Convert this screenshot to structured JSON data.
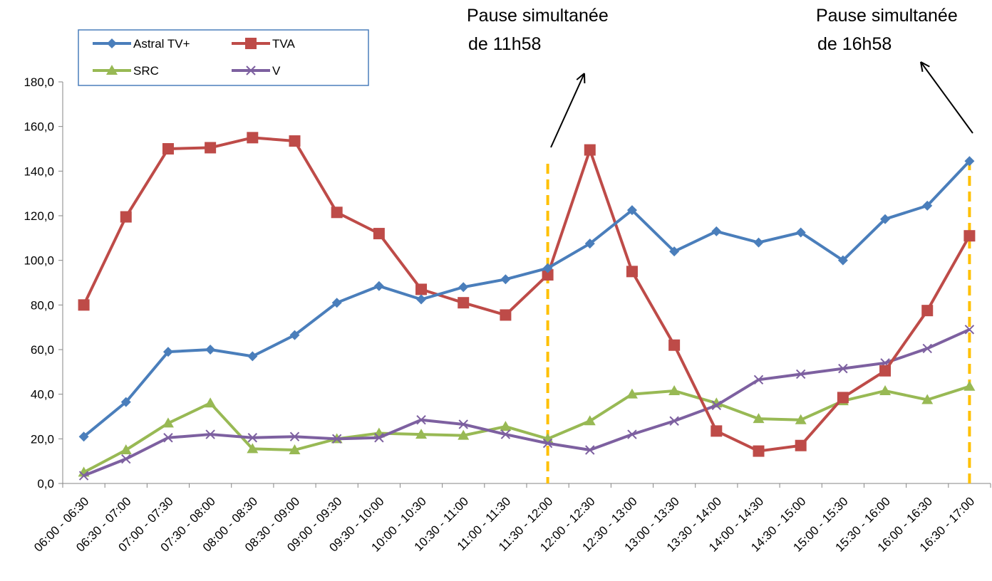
{
  "chart_data": {
    "type": "line",
    "categories": [
      "06:00 - 06:30",
      "06:30 - 07:00",
      "07:00 - 07:30",
      "07:30 - 08:00",
      "08:00 - 08:30",
      "08:30 - 09:00",
      "09:00 - 09:30",
      "09:30 - 10:00",
      "10:00 - 10:30",
      "10:30 - 11:00",
      "11:00 - 11:30",
      "11:30 - 12:00",
      "12:00 - 12:30",
      "12:30 - 13:00",
      "13:00 - 13:30",
      "13:30 - 14:00",
      "14:00 - 14:30",
      "14:30 - 15:00",
      "15:00 - 15:30",
      "15:30 - 16:00",
      "16:00 - 16:30",
      "16:30 - 17:00"
    ],
    "series": [
      {
        "name": "Astral TV+",
        "color": "#4a7ebb",
        "marker": "diamond",
        "values": [
          21,
          36.5,
          59,
          60,
          57,
          66.5,
          81,
          88.5,
          82.5,
          88,
          91.5,
          96.5,
          107.5,
          122.5,
          104,
          113,
          108,
          112.5,
          100,
          118.5,
          124.5,
          144.5
        ]
      },
      {
        "name": "TVA",
        "color": "#be4b48",
        "marker": "square",
        "values": [
          80,
          119.5,
          150,
          150.5,
          155,
          153.5,
          121.5,
          112,
          87,
          81,
          75.5,
          93.5,
          149.5,
          95,
          62,
          23.5,
          14.5,
          17,
          38.5,
          50.5,
          77.5,
          111
        ]
      },
      {
        "name": "SRC",
        "color": "#98b954",
        "marker": "triangle",
        "values": [
          5,
          15,
          27,
          36,
          15.5,
          15,
          20,
          22.5,
          22,
          21.5,
          25.5,
          20,
          28,
          40,
          41.5,
          36,
          29,
          28.5,
          37,
          41.5,
          37.5,
          43.5
        ]
      },
      {
        "name": "V",
        "color": "#7d60a0",
        "marker": "x",
        "values": [
          3.5,
          11,
          20.5,
          22,
          20.5,
          21,
          20,
          20.5,
          28.5,
          26.5,
          22,
          18,
          15,
          22,
          28,
          35,
          46.5,
          49,
          51.5,
          54,
          60.5,
          69
        ]
      }
    ],
    "ylim": [
      0,
      180
    ],
    "yticks": [
      {
        "value": 0,
        "label": "0,0"
      },
      {
        "value": 20,
        "label": "20,0"
      },
      {
        "value": 40,
        "label": "40,0"
      },
      {
        "value": 60,
        "label": "60,0"
      },
      {
        "value": 80,
        "label": "80,0"
      },
      {
        "value": 100,
        "label": "100,0"
      },
      {
        "value": 120,
        "label": "120,0"
      },
      {
        "value": 140,
        "label": "140,0"
      },
      {
        "value": 160,
        "label": "160,0"
      },
      {
        "value": 180,
        "label": "180,0"
      }
    ],
    "annotations": [
      {
        "lines": [
          "Pause simultanée",
          "de 11h58"
        ],
        "at": "11:30 - 12:00",
        "color": "#ffc000"
      },
      {
        "lines": [
          "Pause simultanée",
          "de 16h58"
        ],
        "at": "16:30 - 17:00",
        "color": "#ffc000"
      }
    ],
    "legend": "top-left"
  }
}
